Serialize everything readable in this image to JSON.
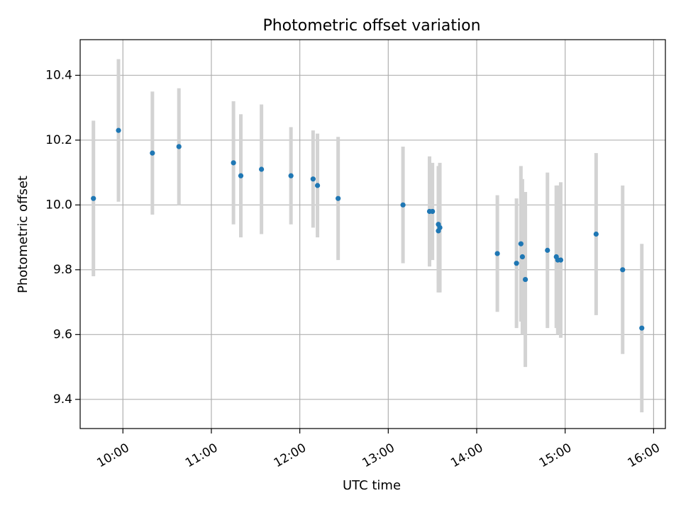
{
  "chart_data": {
    "type": "scatter",
    "title": "Photometric offset variation",
    "xlabel": "UTC time",
    "ylabel": "Photometric offset",
    "x_tick_labels": [
      "10:00",
      "11:00",
      "12:00",
      "13:00",
      "14:00",
      "15:00",
      "16:00"
    ],
    "y_tick_labels": [
      "9.4",
      "9.6",
      "9.8",
      "10.0",
      "10.2",
      "10.4"
    ],
    "ylim": [
      9.31,
      10.51
    ],
    "xlim": [
      "09:31",
      "16:08"
    ],
    "grid": true,
    "legend": "none",
    "series": [
      {
        "marker_color": "#1f77b4",
        "errorbar_color": "#d3d3d3",
        "points": [
          {
            "x": "09:40",
            "y": 10.02,
            "err": 0.24
          },
          {
            "x": "09:57",
            "y": 10.23,
            "err": 0.22
          },
          {
            "x": "10:20",
            "y": 10.16,
            "err": 0.19
          },
          {
            "x": "10:38",
            "y": 10.18,
            "err": 0.18
          },
          {
            "x": "11:15",
            "y": 10.13,
            "err": 0.19
          },
          {
            "x": "11:20",
            "y": 10.09,
            "err": 0.19
          },
          {
            "x": "11:34",
            "y": 10.11,
            "err": 0.2
          },
          {
            "x": "11:54",
            "y": 10.09,
            "err": 0.15
          },
          {
            "x": "12:09",
            "y": 10.08,
            "err": 0.15
          },
          {
            "x": "12:12",
            "y": 10.06,
            "err": 0.16
          },
          {
            "x": "12:26",
            "y": 10.02,
            "err": 0.19
          },
          {
            "x": "13:10",
            "y": 10.0,
            "err": 0.18
          },
          {
            "x": "13:28",
            "y": 9.98,
            "err": 0.17
          },
          {
            "x": "13:30",
            "y": 9.98,
            "err": 0.15
          },
          {
            "x": "13:34",
            "y": 9.92,
            "err": 0.19
          },
          {
            "x": "13:34",
            "y": 9.94,
            "err": 0.18
          },
          {
            "x": "13:35",
            "y": 9.93,
            "err": 0.2
          },
          {
            "x": "14:14",
            "y": 9.85,
            "err": 0.18
          },
          {
            "x": "14:27",
            "y": 9.82,
            "err": 0.2
          },
          {
            "x": "14:30",
            "y": 9.88,
            "err": 0.24
          },
          {
            "x": "14:31",
            "y": 9.84,
            "err": 0.24
          },
          {
            "x": "14:33",
            "y": 9.77,
            "err": 0.27
          },
          {
            "x": "14:48",
            "y": 9.86,
            "err": 0.24
          },
          {
            "x": "14:54",
            "y": 9.84,
            "err": 0.22
          },
          {
            "x": "14:55",
            "y": 9.83,
            "err": 0.23
          },
          {
            "x": "14:57",
            "y": 9.83,
            "err": 0.24
          },
          {
            "x": "15:21",
            "y": 9.91,
            "err": 0.25
          },
          {
            "x": "15:39",
            "y": 9.8,
            "err": 0.26
          },
          {
            "x": "15:52",
            "y": 9.62,
            "err": 0.26
          }
        ]
      }
    ]
  }
}
